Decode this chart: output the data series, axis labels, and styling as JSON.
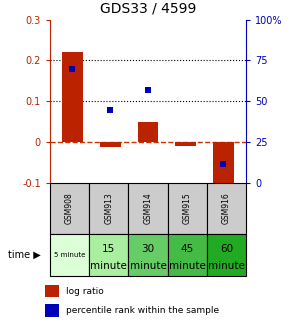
{
  "title": "GDS33 / 4599",
  "samples": [
    "GSM908",
    "GSM913",
    "GSM914",
    "GSM915",
    "GSM916"
  ],
  "time_labels_top": [
    "5 minute",
    "15",
    "30",
    "45",
    "60"
  ],
  "time_labels_bot": [
    "",
    "minute",
    "minute",
    "minute",
    "minute"
  ],
  "log_ratio": [
    0.22,
    -0.012,
    0.05,
    -0.008,
    -0.12
  ],
  "percentile": [
    70,
    45,
    57,
    null,
    12
  ],
  "ylim_left": [
    -0.1,
    0.3
  ],
  "ylim_right": [
    0,
    100
  ],
  "yticks_left": [
    -0.1,
    0.0,
    0.1,
    0.2,
    0.3
  ],
  "ytick_labels_left": [
    "-0.1",
    "0",
    "0.1",
    "0.2",
    "0.3"
  ],
  "yticks_right": [
    0,
    25,
    50,
    75,
    100
  ],
  "ytick_labels_right": [
    "0",
    "25",
    "50",
    "75",
    "100%"
  ],
  "bar_color": "#bb2200",
  "dot_color": "#0000bb",
  "hline_color": "#cc3300",
  "dotted_color": "black",
  "bg_color": "#ffffff",
  "table_header_bg": "#cccccc",
  "time_colors": [
    "#ddffd8",
    "#aaeea0",
    "#66cc66",
    "#44bb44",
    "#22aa22"
  ],
  "bar_width": 0.55,
  "dot_size": 5,
  "legend_items": [
    "log ratio",
    "percentile rank within the sample"
  ],
  "legend_colors": [
    "#bb2200",
    "#0000bb"
  ]
}
